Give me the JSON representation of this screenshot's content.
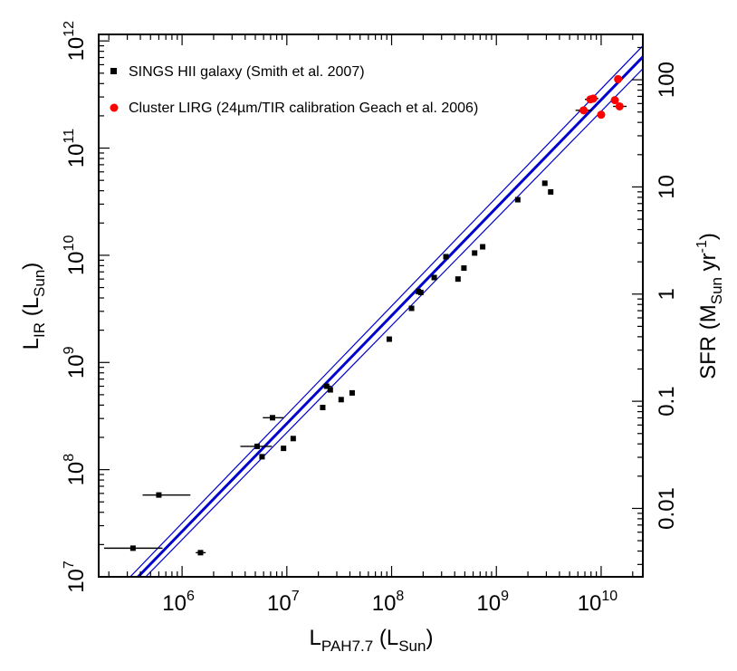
{
  "chart_data": {
    "type": "scatter",
    "x_axis": {
      "label": "L",
      "label_sub": "PAH7.7",
      "label_paren_open": " (L",
      "label_paren_sub": "Sun",
      "label_paren_close": ")",
      "scale": "log",
      "lim": [
        160000,
        25000000000
      ],
      "ticks": [
        {
          "value": 1000000,
          "base": "10",
          "exp": "6"
        },
        {
          "value": 10000000,
          "base": "10",
          "exp": "7"
        },
        {
          "value": 100000000,
          "base": "10",
          "exp": "8"
        },
        {
          "value": 1000000000,
          "base": "10",
          "exp": "9"
        },
        {
          "value": 10000000000,
          "base": "10",
          "exp": "10"
        }
      ]
    },
    "y_axis": {
      "label": "L",
      "label_sub": "IR",
      "label_paren_open": " (L",
      "label_paren_sub": "Sun",
      "label_paren_close": ")",
      "scale": "log",
      "lim": [
        10000000,
        1150000000000
      ],
      "ticks": [
        {
          "value": 10000000,
          "base": "10",
          "exp": "7"
        },
        {
          "value": 100000000,
          "base": "10",
          "exp": "8"
        },
        {
          "value": 1000000000,
          "base": "10",
          "exp": "9"
        },
        {
          "value": 10000000000,
          "base": "10",
          "exp": "10"
        },
        {
          "value": 100000000000,
          "base": "10",
          "exp": "11"
        },
        {
          "value": 1000000000000,
          "base": "10",
          "exp": "12"
        }
      ]
    },
    "y2_axis": {
      "label_a": "SFR (M",
      "label_sub": "Sun",
      "label_b": " yr",
      "label_sup": "-1",
      "label_c": ")",
      "scale": "log",
      "lim": [
        0.0023,
        265
      ],
      "ticks": [
        {
          "value": 0.01,
          "label": "0.01"
        },
        {
          "value": 0.1,
          "label": "0.1"
        },
        {
          "value": 1,
          "label": "1"
        },
        {
          "value": 10,
          "label": "10"
        },
        {
          "value": 100,
          "label": "100"
        }
      ]
    },
    "legend": {
      "position": "top-left",
      "entries": [
        {
          "label": "SINGS HII galaxy (Smith et al. 2007)",
          "marker": "square",
          "color": "#000000"
        },
        {
          "label": "Cluster LIRG (24µm/TIR calibration Geach et al. 2006)",
          "marker": "circle",
          "color": "#ff0000"
        }
      ]
    },
    "series": [
      {
        "name": "SINGS HII galaxy (Smith et al. 2007)",
        "marker": "square",
        "color": "#000000",
        "points": [
          {
            "x": 340000,
            "y": 18500000,
            "xerr": [
              180000,
              650000
            ]
          },
          {
            "x": 600000,
            "y": 58000000,
            "xerr": [
              420000,
              1200000
            ]
          },
          {
            "x": 1500000,
            "y": 16800000,
            "xerr": [
              1350000,
              1680000
            ]
          },
          {
            "x": 5200000,
            "y": 165000000,
            "xerr": [
              3600000,
              7200000
            ]
          },
          {
            "x": 5800000,
            "y": 132000000
          },
          {
            "x": 7300000,
            "y": 305000000,
            "xerr": [
              5900000,
              9300000
            ]
          },
          {
            "x": 9300000,
            "y": 158000000
          },
          {
            "x": 11500000,
            "y": 195000000
          },
          {
            "x": 22000000,
            "y": 380000000
          },
          {
            "x": 24000000,
            "y": 600000000,
            "xerr": [
              22000000,
              26500000
            ]
          },
          {
            "x": 26000000,
            "y": 555000000
          },
          {
            "x": 33000000,
            "y": 450000000
          },
          {
            "x": 42000000,
            "y": 520000000
          },
          {
            "x": 95000000,
            "y": 1650000000
          },
          {
            "x": 155000000,
            "y": 3200000000
          },
          {
            "x": 180000000,
            "y": 4600000000
          },
          {
            "x": 190000000,
            "y": 4500000000
          },
          {
            "x": 255000000,
            "y": 6200000000
          },
          {
            "x": 330000000,
            "y": 9700000000
          },
          {
            "x": 430000000,
            "y": 6000000000
          },
          {
            "x": 490000000,
            "y": 7600000000
          },
          {
            "x": 620000000,
            "y": 10500000000
          },
          {
            "x": 740000000,
            "y": 12000000000
          },
          {
            "x": 1600000000,
            "y": 33000000000
          },
          {
            "x": 2900000000,
            "y": 47000000000
          },
          {
            "x": 3300000000,
            "y": 39000000000
          }
        ]
      },
      {
        "name": "Cluster LIRG (24µm/TIR calibration Geach et al. 2006)",
        "marker": "circle",
        "color": "#ff0000",
        "points": [
          {
            "x": 6800000000,
            "y": 225000000000,
            "xerr": [
              5700000000,
              8200000000
            ]
          },
          {
            "x": 7900000000,
            "y": 285000000000,
            "xerr": [
              7000000000,
              9000000000
            ]
          },
          {
            "x": 8400000000,
            "y": 290000000000,
            "xerr": [
              7600000000,
              9400000000
            ]
          },
          {
            "x": 10000000000,
            "y": 205000000000
          },
          {
            "x": 13500000000,
            "y": 280000000000
          },
          {
            "x": 14500000000,
            "y": 440000000000
          },
          {
            "x": 15000000000,
            "y": 245000000000,
            "xerr": [
              13000000000,
              17500000000
            ]
          }
        ]
      }
    ],
    "fit_lines": [
      {
        "role": "best-fit",
        "color": "#0000cc",
        "points": [
          [
            380000,
            10000000
          ],
          [
            25000000000,
            710000000000
          ]
        ]
      },
      {
        "role": "upper-bound",
        "color": "#0000cc",
        "points": [
          [
            320000,
            10000000
          ],
          [
            25000000000,
            900000000000
          ]
        ]
      },
      {
        "role": "lower-bound",
        "color": "#0000cc",
        "points": [
          [
            450000,
            10000000
          ],
          [
            25000000000,
            550000000000
          ]
        ]
      }
    ]
  }
}
